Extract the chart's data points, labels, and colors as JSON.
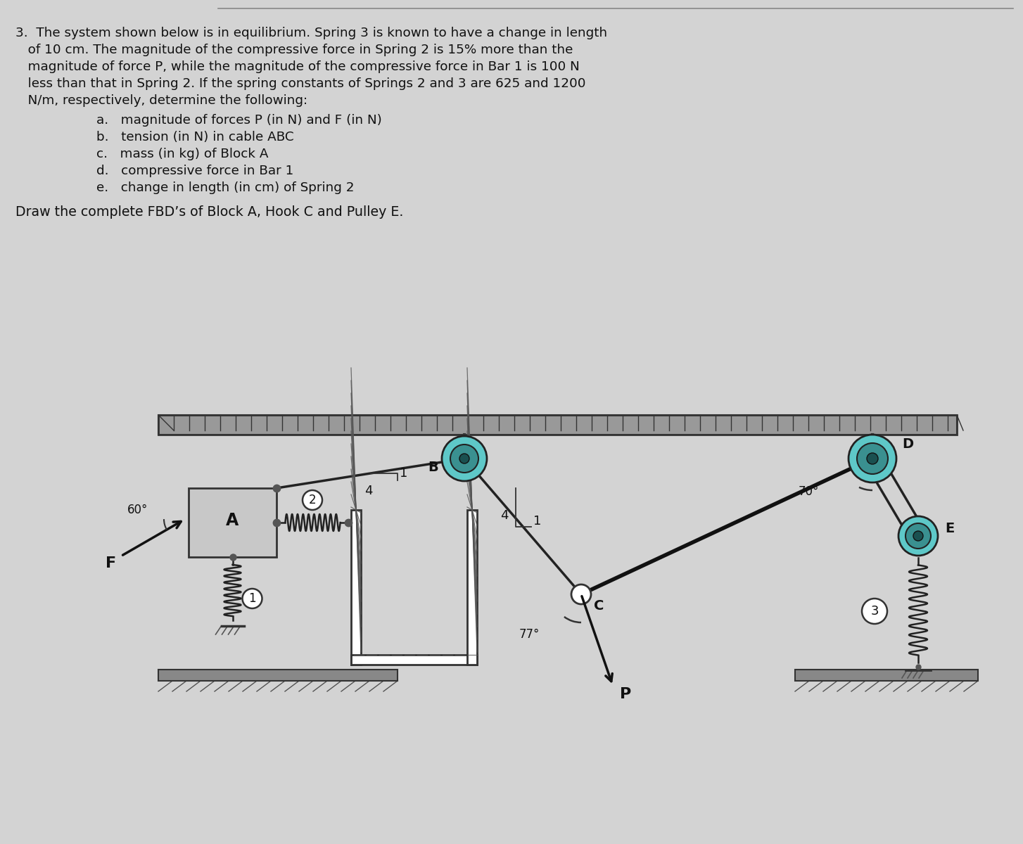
{
  "bg_color": "#d3d3d3",
  "text_color": "#111111",
  "problem_lines": [
    "3.  The system shown below is in equilibrium. Spring 3 is known to have a change in length",
    "   of 10 cm. The magnitude of the compressive force in Spring 2 is 15% more than the",
    "   magnitude of force P, while the magnitude of the compressive force in Bar 1 is 100 N",
    "   less than that in Spring 2. If the spring constants of Springs 2 and 3 are 625 and 1200",
    "   N/m, respectively, determine the following:"
  ],
  "sub_items": [
    "a.   magnitude of forces P (in N) and F (in N)",
    "b.   tension (in N) in cable ABC",
    "c.   mass (in kg) of Block A",
    "d.   compressive force in Bar 1",
    "e.   change in length (in cm) of Spring 2"
  ],
  "fbd_line": "Draw the complete FBD’s of Block A, Hook C and Pulley E.",
  "pulley_outer": "#5ec8c8",
  "pulley_mid": "#3a9090",
  "pulley_inner": "#1a5050",
  "rope_color": "#222222",
  "block_color": "#c8c8c8",
  "wall_color": "#ffffff",
  "hatch_color": "#555555",
  "label_color": "#111111",
  "spring_color": "#222222"
}
